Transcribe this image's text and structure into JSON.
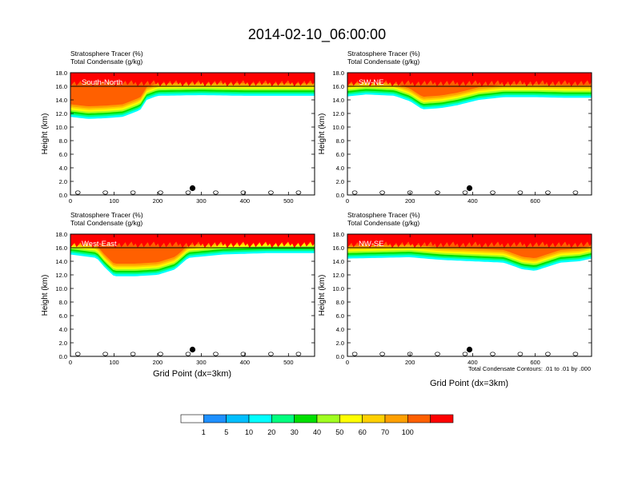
{
  "title": "2014-02-10_06:00:00",
  "panel_header": {
    "line1": "Stratosphere Tracer   (%)",
    "line2": "Total Condensate   (g/kg)"
  },
  "ylabel": "Height (km)",
  "xlabel": "Grid Point (dx=3km)",
  "contour_note": "Total Condensate Contours: .01 to .01 by .000",
  "colorbar": {
    "labels": [
      "1",
      "5",
      "10",
      "20",
      "30",
      "40",
      "50",
      "60",
      "70",
      "100"
    ],
    "colors": [
      "#ffffff",
      "#1e90ff",
      "#00bfff",
      "#00ffff",
      "#00ff7f",
      "#00e000",
      "#a0ff20",
      "#ffff00",
      "#ffd000",
      "#ffa000",
      "#ff6000",
      "#ff0000"
    ]
  },
  "chart_data": [
    {
      "type": "heatmap",
      "panel": "South-North",
      "ylim": [
        0,
        18
      ],
      "xlim": [
        0,
        560
      ],
      "yticks": [
        "0.0",
        "2.0",
        "4.0",
        "6.0",
        "8.0",
        "10.0",
        "12.0",
        "14.0",
        "16.0",
        "18.0"
      ],
      "xticks": [
        {
          "v": 0,
          "label": "0"
        },
        {
          "v": 100,
          "label": "100"
        },
        {
          "v": 200,
          "label": "200"
        },
        {
          "v": 300,
          "label": "300"
        },
        {
          "v": 400,
          "label": "400"
        },
        {
          "v": 500,
          "label": "500"
        }
      ],
      "marker": {
        "x": 280,
        "y": 1.0
      },
      "tracer_base": [
        {
          "x": 0,
          "b": 11.5
        },
        {
          "x": 40,
          "b": 11.2
        },
        {
          "x": 80,
          "b": 11.3
        },
        {
          "x": 120,
          "b": 11.5
        },
        {
          "x": 160,
          "b": 12.5
        },
        {
          "x": 175,
          "b": 14.0
        },
        {
          "x": 200,
          "b": 14.6
        },
        {
          "x": 300,
          "b": 14.7
        },
        {
          "x": 400,
          "b": 14.6
        },
        {
          "x": 500,
          "b": 14.6
        },
        {
          "x": 560,
          "b": 14.6
        }
      ]
    },
    {
      "type": "heatmap",
      "panel": "SW-NE",
      "ylim": [
        0,
        18
      ],
      "xlim": [
        0,
        780
      ],
      "yticks": [
        "0.0",
        "2.0",
        "4.0",
        "6.0",
        "8.0",
        "10.0",
        "12.0",
        "14.0",
        "16.0",
        "18.0"
      ],
      "xticks": [
        {
          "v": 0,
          "label": "0"
        },
        {
          "v": 200,
          "label": "200"
        },
        {
          "v": 400,
          "label": "400"
        },
        {
          "v": 600,
          "label": "600"
        }
      ],
      "marker": {
        "x": 390,
        "y": 1.0
      },
      "tracer_base": [
        {
          "x": 0,
          "b": 14.5
        },
        {
          "x": 60,
          "b": 14.8
        },
        {
          "x": 150,
          "b": 14.6
        },
        {
          "x": 200,
          "b": 13.8
        },
        {
          "x": 240,
          "b": 12.6
        },
        {
          "x": 300,
          "b": 12.8
        },
        {
          "x": 350,
          "b": 13.2
        },
        {
          "x": 420,
          "b": 14.0
        },
        {
          "x": 500,
          "b": 14.4
        },
        {
          "x": 600,
          "b": 14.4
        },
        {
          "x": 700,
          "b": 14.3
        },
        {
          "x": 780,
          "b": 14.3
        }
      ]
    },
    {
      "type": "heatmap",
      "panel": "West-East",
      "ylim": [
        0,
        18
      ],
      "xlim": [
        0,
        560
      ],
      "yticks": [
        "0.0",
        "2.0",
        "4.0",
        "6.0",
        "8.0",
        "10.0",
        "12.0",
        "14.0",
        "16.0",
        "18.0"
      ],
      "xticks": [
        {
          "v": 0,
          "label": "0"
        },
        {
          "v": 100,
          "label": "100"
        },
        {
          "v": 200,
          "label": "200"
        },
        {
          "v": 300,
          "label": "300"
        },
        {
          "v": 400,
          "label": "400"
        },
        {
          "v": 500,
          "label": "500"
        }
      ],
      "marker": {
        "x": 280,
        "y": 1.0
      },
      "tracer_base": [
        {
          "x": 0,
          "b": 15.0
        },
        {
          "x": 60,
          "b": 14.5
        },
        {
          "x": 80,
          "b": 13.0
        },
        {
          "x": 100,
          "b": 11.8
        },
        {
          "x": 150,
          "b": 11.8
        },
        {
          "x": 200,
          "b": 12.0
        },
        {
          "x": 240,
          "b": 12.8
        },
        {
          "x": 270,
          "b": 14.5
        },
        {
          "x": 350,
          "b": 15.0
        },
        {
          "x": 450,
          "b": 15.2
        },
        {
          "x": 560,
          "b": 15.2
        }
      ]
    },
    {
      "type": "heatmap",
      "panel": "NW-SE",
      "ylim": [
        0,
        18
      ],
      "xlim": [
        0,
        780
      ],
      "yticks": [
        "0.0",
        "2.0",
        "4.0",
        "6.0",
        "8.0",
        "10.0",
        "12.0",
        "14.0",
        "16.0",
        "18.0"
      ],
      "xticks": [
        {
          "v": 0,
          "label": "0"
        },
        {
          "v": 200,
          "label": "200"
        },
        {
          "v": 400,
          "label": "400"
        },
        {
          "v": 600,
          "label": "600"
        }
      ],
      "marker": {
        "x": 390,
        "y": 1.0
      },
      "tracer_base": [
        {
          "x": 0,
          "b": 14.4
        },
        {
          "x": 100,
          "b": 14.5
        },
        {
          "x": 200,
          "b": 14.6
        },
        {
          "x": 300,
          "b": 14.2
        },
        {
          "x": 400,
          "b": 14.0
        },
        {
          "x": 500,
          "b": 13.8
        },
        {
          "x": 560,
          "b": 12.8
        },
        {
          "x": 600,
          "b": 12.6
        },
        {
          "x": 680,
          "b": 13.8
        },
        {
          "x": 740,
          "b": 14.0
        },
        {
          "x": 780,
          "b": 14.4
        }
      ]
    }
  ]
}
